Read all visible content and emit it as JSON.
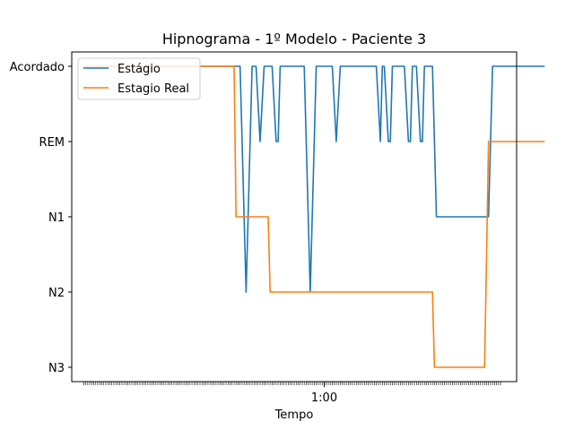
{
  "chart_data": {
    "type": "line",
    "title": "Hipnograma - 1º Modelo - Paciente 3",
    "xlabel": "Tempo",
    "ylabel": "",
    "y_categories": [
      "N3",
      "N2",
      "N1",
      "REM",
      "Acordado"
    ],
    "x_tick_label": "1:00",
    "x_tick_label_position": 60,
    "xlim": [
      -3,
      108
    ],
    "minor_ticks": {
      "start": 0,
      "end": 104,
      "step": 0.5
    },
    "grid": false,
    "legend_position": "top-left",
    "series": [
      {
        "name": "Estágio",
        "color": "#1f77b4",
        "points": [
          [
            0,
            4
          ],
          [
            39,
            4
          ],
          [
            40.5,
            1
          ],
          [
            42,
            4
          ],
          [
            43,
            4
          ],
          [
            44,
            3
          ],
          [
            45,
            4
          ],
          [
            47,
            4
          ],
          [
            48,
            3
          ],
          [
            48.5,
            3
          ],
          [
            49,
            4
          ],
          [
            55,
            4
          ],
          [
            56.5,
            1
          ],
          [
            58,
            4
          ],
          [
            62,
            4
          ],
          [
            63,
            3
          ],
          [
            64,
            4
          ],
          [
            73,
            4
          ],
          [
            74,
            3
          ],
          [
            74.5,
            4
          ],
          [
            75,
            4
          ],
          [
            76,
            3
          ],
          [
            76.5,
            3
          ],
          [
            77,
            4
          ],
          [
            80,
            4
          ],
          [
            81,
            3
          ],
          [
            81.5,
            3
          ],
          [
            82,
            4
          ],
          [
            83,
            4
          ],
          [
            84,
            3
          ],
          [
            84.5,
            3
          ],
          [
            85,
            4
          ],
          [
            87,
            4
          ],
          [
            88,
            2
          ],
          [
            101,
            2
          ],
          [
            102,
            4
          ],
          [
            115,
            4
          ]
        ]
      },
      {
        "name": "Estagio Real",
        "color": "#ff7f0e",
        "points": [
          [
            0,
            4
          ],
          [
            37.5,
            4
          ],
          [
            38,
            2
          ],
          [
            46,
            2
          ],
          [
            46.5,
            1
          ],
          [
            87,
            1
          ],
          [
            87.5,
            0
          ],
          [
            100,
            0
          ],
          [
            101,
            3
          ],
          [
            115,
            3
          ]
        ]
      }
    ]
  }
}
